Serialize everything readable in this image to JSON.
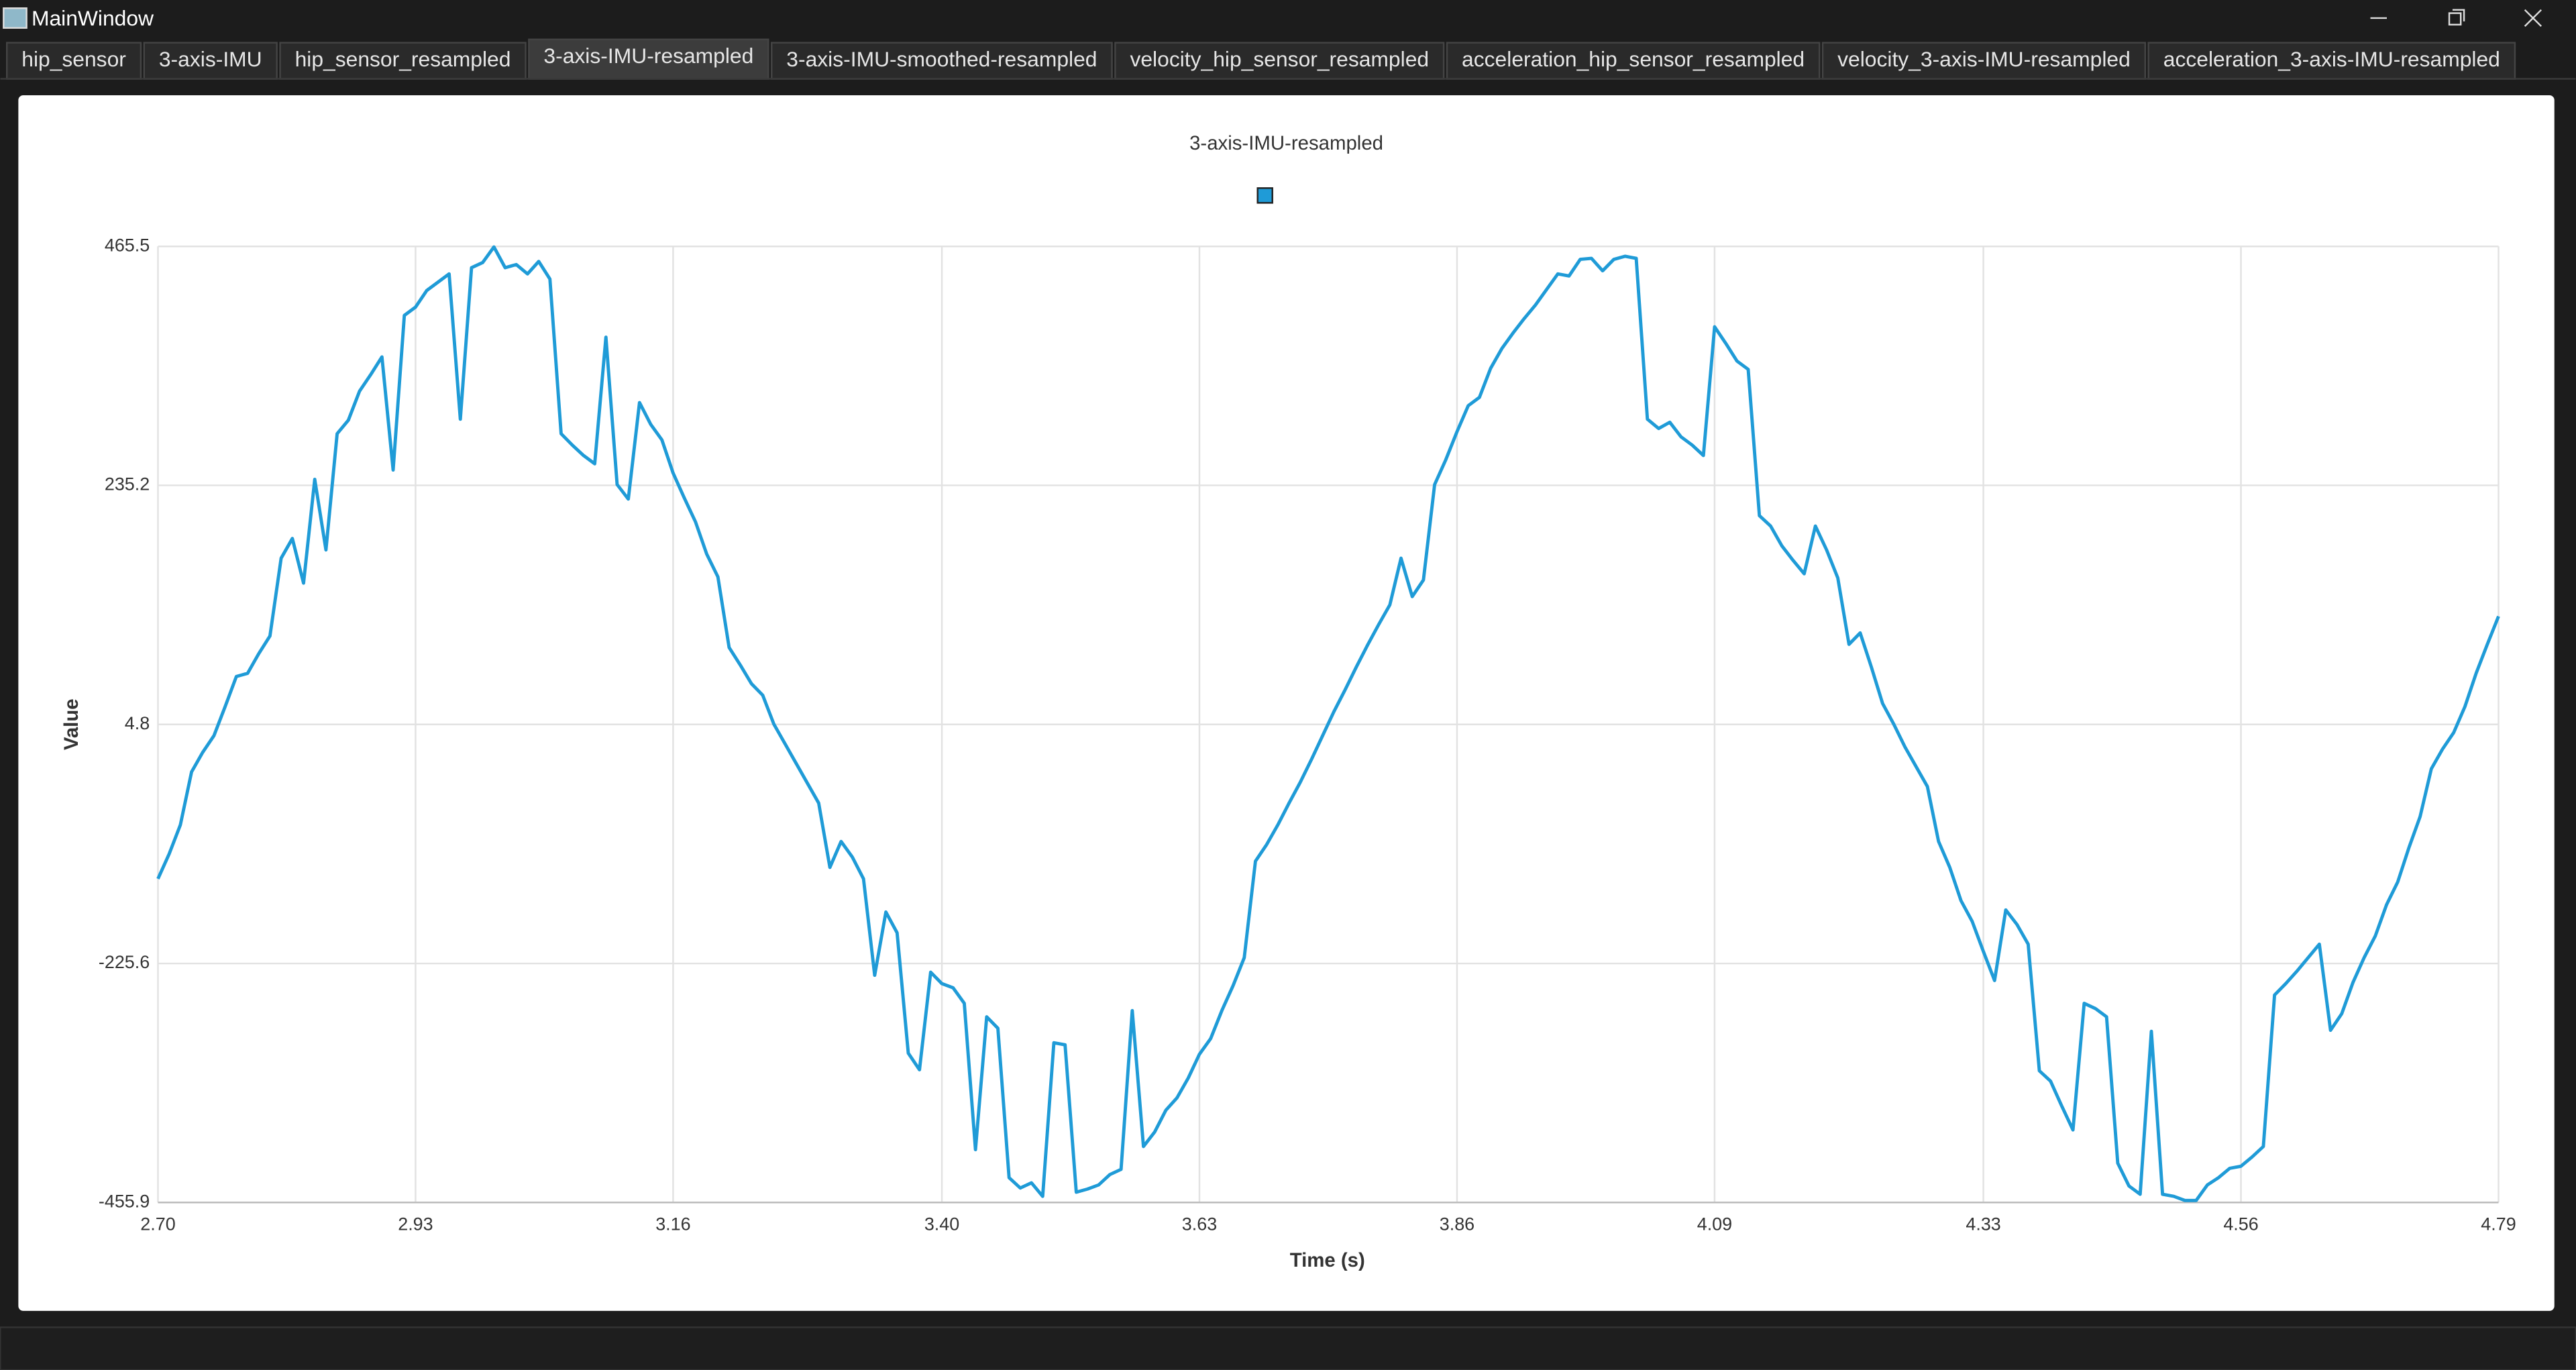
{
  "window": {
    "title": "MainWindow",
    "tabs": [
      "hip_sensor",
      "3-axis-IMU",
      "hip_sensor_resampled",
      "3-axis-IMU-resampled",
      "3-axis-IMU-smoothed-resampled",
      "velocity_hip_sensor_resampled",
      "acceleration_hip_sensor_resampled",
      "velocity_3-axis-IMU-resampled",
      "acceleration_3-axis-IMU-resampled"
    ],
    "active_tab": 3
  },
  "chart_data": {
    "type": "line",
    "title": "3-axis-IMU-resampled",
    "x_label": "Time (s)",
    "y_label": "Value",
    "x": [
      2.7,
      2.71,
      2.72,
      2.73,
      2.74,
      2.75,
      2.76,
      2.77,
      2.78,
      2.79,
      2.8,
      2.81,
      2.82,
      2.83,
      2.84,
      2.85,
      2.86,
      2.87,
      2.88,
      2.89,
      2.9,
      2.91,
      2.92,
      2.93,
      2.94,
      2.95,
      2.96,
      2.97,
      2.98,
      2.99,
      3,
      3.01,
      3.02,
      3.03,
      3.04,
      3.05,
      3.06,
      3.07,
      3.08,
      3.09,
      3.1,
      3.11,
      3.12,
      3.13,
      3.14,
      3.15,
      3.16,
      3.17,
      3.18,
      3.19,
      3.2,
      3.21,
      3.22,
      3.23,
      3.24,
      3.25,
      3.26,
      3.27,
      3.28,
      3.29,
      3.3,
      3.31,
      3.32,
      3.33,
      3.34,
      3.35,
      3.36,
      3.37,
      3.38,
      3.39,
      3.4,
      3.41,
      3.42,
      3.43,
      3.44,
      3.45,
      3.46,
      3.47,
      3.48,
      3.49,
      3.5,
      3.51,
      3.52,
      3.53,
      3.54,
      3.55,
      3.56,
      3.57,
      3.58,
      3.59,
      3.6,
      3.61,
      3.62,
      3.63,
      3.64,
      3.65,
      3.66,
      3.67,
      3.68,
      3.69,
      3.7,
      3.71,
      3.72,
      3.73,
      3.74,
      3.75,
      3.76,
      3.77,
      3.78,
      3.79,
      3.8,
      3.81,
      3.82,
      3.83,
      3.84,
      3.85,
      3.86,
      3.87,
      3.88,
      3.89,
      3.9,
      3.91,
      3.92,
      3.93,
      3.94,
      3.95,
      3.96,
      3.97,
      3.98,
      3.99,
      4,
      4.01,
      4.02,
      4.03,
      4.04,
      4.05,
      4.06,
      4.07,
      4.08,
      4.09,
      4.1,
      4.11,
      4.12,
      4.13,
      4.14,
      4.15,
      4.16,
      4.17,
      4.18,
      4.19,
      4.2,
      4.21,
      4.22,
      4.23,
      4.24,
      4.25,
      4.26,
      4.27,
      4.28,
      4.29,
      4.3,
      4.31,
      4.32,
      4.33,
      4.34,
      4.35,
      4.36,
      4.37,
      4.38,
      4.39,
      4.4,
      4.41,
      4.42,
      4.43,
      4.44,
      4.45,
      4.46,
      4.47,
      4.48,
      4.49,
      4.5,
      4.51,
      4.52,
      4.53,
      4.54,
      4.55,
      4.56,
      4.57,
      4.58,
      4.59,
      4.6,
      4.61,
      4.62,
      4.63,
      4.64,
      4.65,
      4.66,
      4.67,
      4.68,
      4.69,
      4.7,
      4.71,
      4.72,
      4.73,
      4.74,
      4.75,
      4.76,
      4.77,
      4.78,
      4.79
    ],
    "series": [
      {
        "color": "#1f9bd7",
        "values": [
          -144,
          -120,
          -92,
          -41,
          -22,
          -6,
          22,
          51,
          54,
          73,
          90,
          165,
          184,
          141,
          241,
          173,
          285,
          298,
          326,
          342,
          359,
          250,
          399,
          407,
          423,
          431,
          439,
          299,
          445,
          450,
          465,
          445,
          448,
          439,
          451,
          434,
          285,
          274,
          264,
          256,
          378,
          236,
          222,
          315,
          294,
          279,
          247,
          223,
          200,
          169,
          147,
          79,
          62,
          44,
          33,
          5,
          -14,
          -33,
          -52,
          -71,
          -133,
          -108,
          -123,
          -144,
          -237,
          -176,
          -196,
          -312,
          -328,
          -234,
          -245,
          -249,
          -264,
          -405,
          -277,
          -288,
          -432,
          -442,
          -437,
          -450,
          -302,
          -304,
          -446,
          -443,
          -439,
          -429,
          -424,
          -271,
          -402,
          -388,
          -367,
          -355,
          -336,
          -313,
          -298,
          -271,
          -247,
          -220,
          -127,
          -111,
          -92,
          -71,
          -51,
          -29,
          -6,
          17,
          38,
          60,
          81,
          101,
          120,
          165,
          128,
          144,
          236,
          260,
          287,
          312,
          320,
          348,
          367,
          382,
          396,
          409,
          424,
          439,
          437,
          453,
          454,
          442,
          453,
          456,
          454,
          299,
          290,
          296,
          282,
          274,
          264,
          388,
          372,
          355,
          347,
          206,
          196,
          177,
          163,
          150,
          196,
          173,
          146,
          82,
          93,
          60,
          25,
          5,
          -17,
          -36,
          -55,
          -108,
          -133,
          -165,
          -185,
          -214,
          -242,
          -174,
          -188,
          -207,
          -329,
          -339,
          -363,
          -386,
          -264,
          -269,
          -277,
          -418,
          -440,
          -448,
          -291,
          -448,
          -450,
          -454,
          -454,
          -439,
          -432,
          -423,
          -421,
          -412,
          -402,
          -256,
          -245,
          -233,
          -220,
          -207,
          -290,
          -274,
          -244,
          -220,
          -199,
          -169,
          -147,
          -114,
          -84,
          -38,
          -19,
          -3,
          22,
          54,
          82,
          109
        ]
      }
    ],
    "xlim": [
      2.7,
      4.79
    ],
    "ylim": [
      -455.9,
      465.5
    ],
    "xticks": [
      {
        "value": 2.7,
        "label": "2.70"
      },
      2.93,
      3.16,
      {
        "value": 3.4,
        "label": "3.40"
      },
      3.63,
      3.86,
      4.09,
      4.33,
      4.56,
      4.79
    ],
    "yticks": [
      465.5,
      235.2,
      4.8,
      -225.6,
      -455.9
    ],
    "grid": true
  }
}
